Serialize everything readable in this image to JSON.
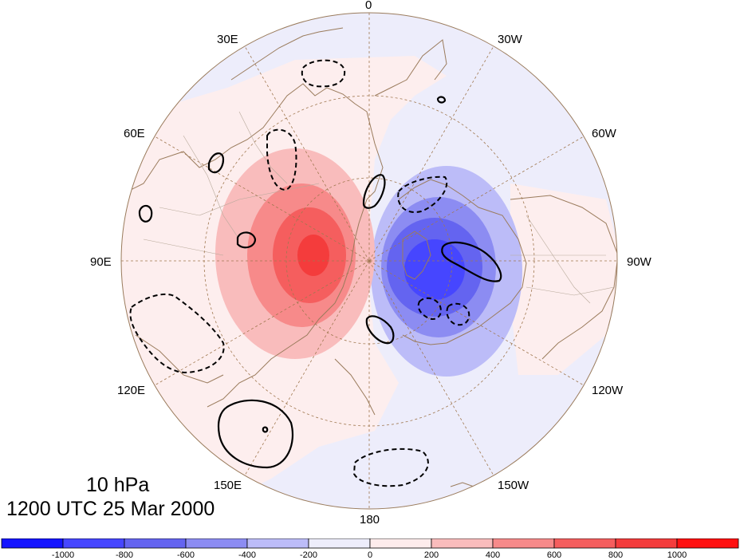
{
  "title": {
    "level": "10 hPa",
    "datetime": "1200 UTC 25 Mar 2000"
  },
  "longitude_labels": {
    "lon_0": "0",
    "lon_30w": "30W",
    "lon_60w": "60W",
    "lon_90w": "90W",
    "lon_120w": "120W",
    "lon_150w": "150W",
    "lon_180": "180",
    "lon_150e": "150E",
    "lon_120e": "120E",
    "lon_90e": "90E",
    "lon_60e": "60E",
    "lon_30e": "30E"
  },
  "colorbar": {
    "ticks": [
      "-1000",
      "-800",
      "-600",
      "-400",
      "-200",
      "0",
      "200",
      "400",
      "600",
      "800",
      "1000"
    ],
    "colors": [
      "#1414ff",
      "#4646ff",
      "#6464f0",
      "#8c8cf2",
      "#bcbcf8",
      "#ededfb",
      "#fdecec",
      "#f9bcbc",
      "#f78a8a",
      "#f55e5e",
      "#f43c3c",
      "#ff1010"
    ]
  },
  "colors": {
    "coastline": "#9a7b5c",
    "gridline": "#a07850",
    "contour": "#000000"
  }
}
